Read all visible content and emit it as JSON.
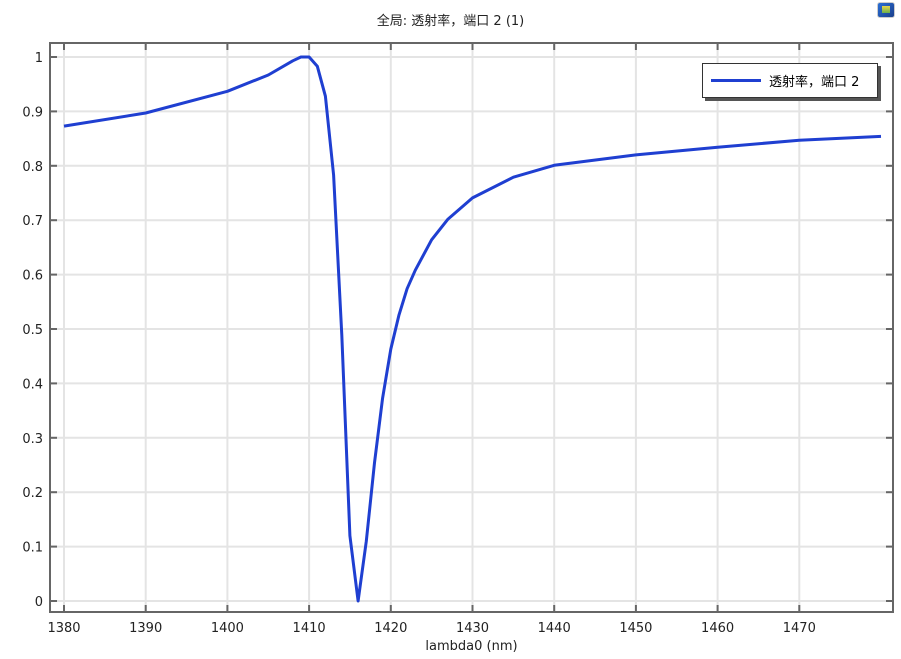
{
  "chart_data": {
    "type": "line",
    "title": "全局: 透射率，端口 2 (1)",
    "xlabel": "lambda0 (nm)",
    "ylabel": "",
    "xlim": [
      1378,
      1482
    ],
    "ylim": [
      -0.02,
      1.045
    ],
    "xticks": [
      1380,
      1390,
      1400,
      1410,
      1420,
      1430,
      1440,
      1450,
      1460,
      1470
    ],
    "yticks": [
      0,
      0.1,
      0.2,
      0.3,
      0.4,
      0.5,
      0.6,
      0.7,
      0.8,
      0.9,
      1
    ],
    "grid": true,
    "legend_position": "top-right",
    "series": [
      {
        "name": "透射率，端口 2",
        "color": "#1f3fd1",
        "x": [
          1380,
          1390,
          1400,
          1405,
          1408,
          1409,
          1410,
          1411,
          1412,
          1413,
          1414,
          1415,
          1416,
          1417,
          1418,
          1419,
          1420,
          1421,
          1422,
          1423,
          1425,
          1427,
          1430,
          1435,
          1440,
          1450,
          1460,
          1470,
          1480
        ],
        "y": [
          0.873,
          0.897,
          0.937,
          0.967,
          0.993,
          1.0,
          1.0,
          0.983,
          0.928,
          0.783,
          0.489,
          0.12,
          0.0,
          0.11,
          0.254,
          0.373,
          0.463,
          0.526,
          0.574,
          0.608,
          0.664,
          0.702,
          0.741,
          0.779,
          0.801,
          0.82,
          0.834,
          0.847,
          0.854
        ]
      }
    ]
  }
}
